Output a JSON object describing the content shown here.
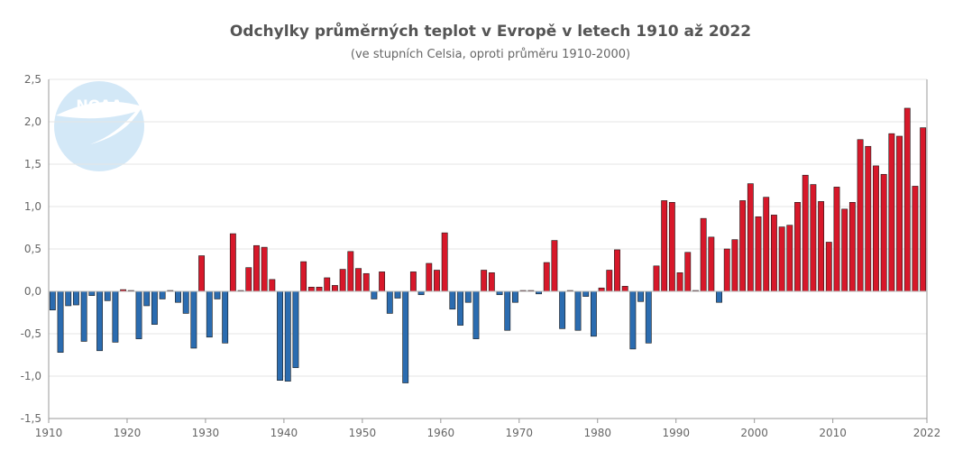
{
  "logo": {
    "text": "NOAA"
  },
  "colors": {
    "positive": "#d7182a",
    "negative": "#2b6cb0",
    "bar_stroke": "#1a1a1a",
    "logo_blue": "#cfe6f7"
  },
  "chart_data": {
    "type": "bar",
    "title": "Odchylky průměrných teplot v Evropě v letech 1910 až 2022",
    "subtitle": "(ve stupních Celsia, oproti průměru 1910-2000)",
    "xlabel": "",
    "ylabel": "",
    "ylim": [
      -1.5,
      2.5
    ],
    "y_ticks": [
      2.5,
      2.0,
      1.5,
      1.0,
      0.5,
      0.0,
      -0.5,
      -1.0,
      -1.5
    ],
    "y_tick_labels": [
      "2,5",
      "2,0",
      "1,5",
      "1,0",
      "0,5",
      "0,0",
      "-0,5",
      "-1,0",
      "-1,5"
    ],
    "x_ticks": [
      1910,
      1920,
      1930,
      1940,
      1950,
      1960,
      1970,
      1980,
      1990,
      2000,
      2010,
      2022
    ],
    "x_tick_labels": [
      "1910",
      "1920",
      "1930",
      "1940",
      "1950",
      "1960",
      "1970",
      "1980",
      "1990",
      "2000",
      "2010",
      "2022"
    ],
    "grid": true,
    "categories": [
      1911,
      1912,
      1913,
      1914,
      1915,
      1916,
      1917,
      1918,
      1919,
      1920,
      1921,
      1922,
      1923,
      1924,
      1925,
      1926,
      1927,
      1928,
      1929,
      1930,
      1931,
      1932,
      1933,
      1934,
      1935,
      1936,
      1937,
      1938,
      1939,
      1940,
      1941,
      1942,
      1943,
      1944,
      1945,
      1946,
      1947,
      1948,
      1949,
      1950,
      1951,
      1952,
      1953,
      1954,
      1955,
      1956,
      1957,
      1958,
      1959,
      1960,
      1961,
      1962,
      1963,
      1964,
      1965,
      1966,
      1967,
      1968,
      1969,
      1970,
      1971,
      1972,
      1973,
      1974,
      1975,
      1976,
      1977,
      1978,
      1979,
      1980,
      1981,
      1982,
      1983,
      1984,
      1985,
      1986,
      1987,
      1988,
      1989,
      1990,
      1991,
      1992,
      1993,
      1994,
      1995,
      1996,
      1997,
      1998,
      1999,
      2000,
      2001,
      2002,
      2003,
      2004,
      2005,
      2006,
      2007,
      2008,
      2009,
      2010,
      2011,
      2012,
      2013,
      2014,
      2015,
      2016,
      2017,
      2018,
      2019,
      2020,
      2021,
      2022
    ],
    "values": [
      -0.22,
      -0.72,
      -0.17,
      -0.16,
      -0.59,
      -0.05,
      -0.7,
      -0.11,
      -0.6,
      0.02,
      0.01,
      -0.56,
      -0.17,
      -0.39,
      -0.09,
      0.01,
      -0.13,
      -0.26,
      -0.67,
      0.42,
      -0.54,
      -0.09,
      -0.61,
      0.68,
      0.01,
      0.28,
      0.54,
      0.52,
      0.14,
      -1.05,
      -1.06,
      -0.9,
      0.35,
      0.05,
      0.05,
      0.16,
      0.07,
      0.26,
      0.47,
      0.27,
      0.21,
      -0.09,
      0.23,
      -0.26,
      -0.08,
      -1.08,
      0.23,
      -0.04,
      0.33,
      0.25,
      0.69,
      -0.21,
      -0.4,
      -0.13,
      -0.56,
      0.25,
      0.22,
      -0.04,
      -0.46,
      -0.13,
      0.01,
      0.01,
      -0.03,
      0.34,
      0.6,
      -0.44,
      0.01,
      -0.46,
      -0.06,
      -0.53,
      0.04,
      0.25,
      0.49,
      0.06,
      -0.68,
      -0.12,
      -0.61,
      0.3,
      1.07,
      1.05,
      0.22,
      0.46,
      0.01,
      0.86,
      0.64,
      -0.13,
      0.5,
      0.61,
      1.07,
      1.27,
      0.88,
      1.11,
      0.9,
      0.76,
      0.78,
      1.05,
      1.37,
      1.26,
      1.06,
      0.58,
      1.23,
      0.97,
      1.05,
      1.79,
      1.71,
      1.48,
      1.38,
      1.86,
      1.83,
      2.16,
      1.24,
      1.93
    ]
  }
}
